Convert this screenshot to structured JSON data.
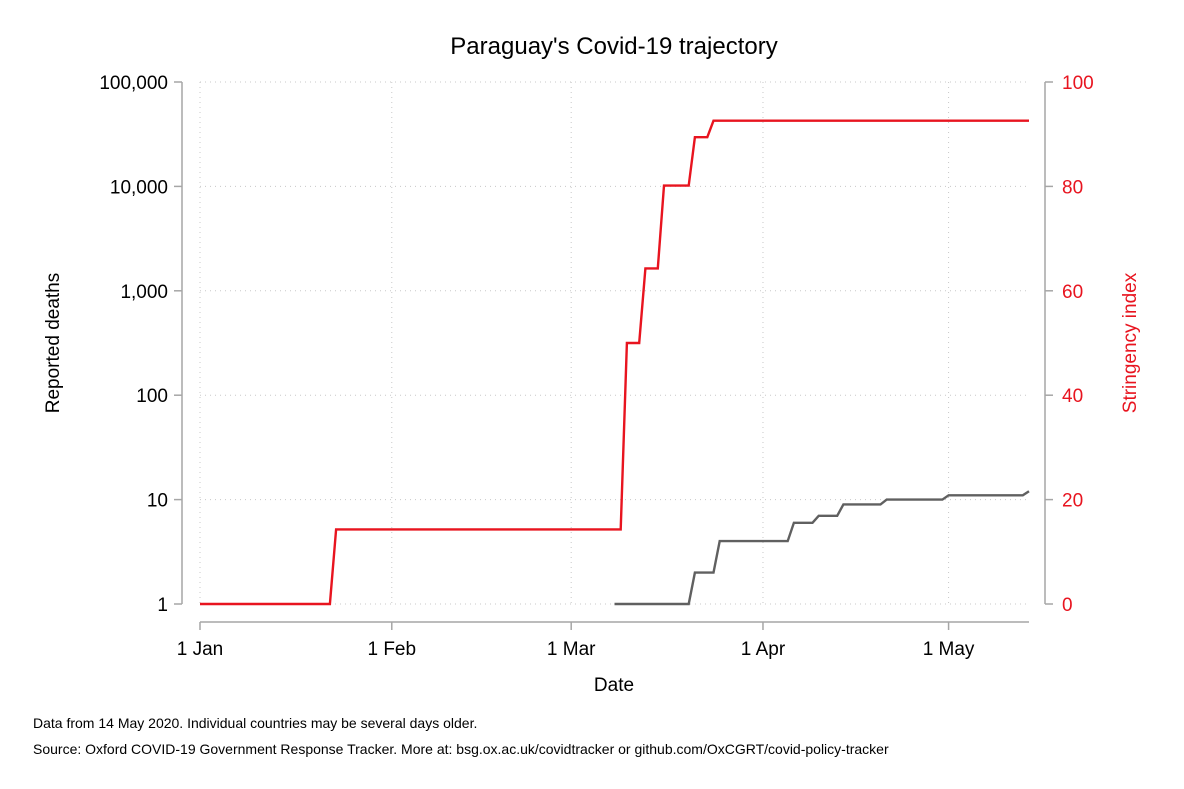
{
  "chart_data": {
    "type": "line",
    "title": "Paraguay's Covid-19 trajectory",
    "xlabel": "Date",
    "ylabel_left": "Reported deaths",
    "ylabel_right": "Stringency index",
    "x_domain_days": [
      0,
      134
    ],
    "x_ticks": [
      {
        "label": "1 Jan",
        "day": 0
      },
      {
        "label": "1 Feb",
        "day": 31
      },
      {
        "label": "1 Mar",
        "day": 60
      },
      {
        "label": "1 Apr",
        "day": 91
      },
      {
        "label": "1 May",
        "day": 121
      }
    ],
    "left_axis": {
      "scale": "log",
      "range": [
        1,
        100000
      ],
      "ticks": [
        {
          "label": "1",
          "value": 1
        },
        {
          "label": "10",
          "value": 10
        },
        {
          "label": "100",
          "value": 100
        },
        {
          "label": "1,000",
          "value": 1000
        },
        {
          "label": "10,000",
          "value": 10000
        },
        {
          "label": "100,000",
          "value": 100000
        }
      ]
    },
    "right_axis": {
      "scale": "linear",
      "range": [
        0,
        100
      ],
      "ticks": [
        {
          "label": "0",
          "value": 0
        },
        {
          "label": "20",
          "value": 20
        },
        {
          "label": "40",
          "value": 40
        },
        {
          "label": "60",
          "value": 60
        },
        {
          "label": "80",
          "value": 80
        },
        {
          "label": "100",
          "value": 100
        }
      ]
    },
    "series": [
      {
        "name": "Stringency index",
        "axis": "right",
        "color": "#e8141f",
        "step_points": [
          {
            "day": 0,
            "value": 0
          },
          {
            "day": 21,
            "value": 0
          },
          {
            "day": 22,
            "value": 14.29
          },
          {
            "day": 68,
            "value": 14.29
          },
          {
            "day": 69,
            "value": 50
          },
          {
            "day": 71,
            "value": 50
          },
          {
            "day": 72,
            "value": 64.29
          },
          {
            "day": 74,
            "value": 64.29
          },
          {
            "day": 75,
            "value": 80.16
          },
          {
            "day": 79,
            "value": 80.16
          },
          {
            "day": 80,
            "value": 89.42
          },
          {
            "day": 82,
            "value": 89.42
          },
          {
            "day": 83,
            "value": 92.59
          },
          {
            "day": 134,
            "value": 92.59
          }
        ]
      },
      {
        "name": "Reported deaths",
        "axis": "left",
        "color": "#606060",
        "step_points": [
          {
            "day": 67,
            "value": 1
          },
          {
            "day": 79,
            "value": 1
          },
          {
            "day": 80,
            "value": 2
          },
          {
            "day": 83,
            "value": 2
          },
          {
            "day": 84,
            "value": 4
          },
          {
            "day": 95,
            "value": 4
          },
          {
            "day": 96,
            "value": 6
          },
          {
            "day": 99,
            "value": 6
          },
          {
            "day": 100,
            "value": 7
          },
          {
            "day": 103,
            "value": 7
          },
          {
            "day": 104,
            "value": 9
          },
          {
            "day": 110,
            "value": 9
          },
          {
            "day": 111,
            "value": 10
          },
          {
            "day": 120,
            "value": 10
          },
          {
            "day": 121,
            "value": 11
          },
          {
            "day": 133,
            "value": 11
          },
          {
            "day": 134,
            "value": 12
          }
        ]
      }
    ]
  },
  "notes": {
    "line1": "Data from 14 May 2020. Individual countries may be several days older.",
    "line2": "Source: Oxford COVID-19 Government Response Tracker. More at: bsg.ox.ac.uk/covidtracker or github.com/OxCGRT/covid-policy-tracker"
  },
  "colors": {
    "stringency": "#e8141f",
    "deaths": "#606060",
    "axis": "#a6a6a6",
    "grid": "#c8c8c8"
  }
}
